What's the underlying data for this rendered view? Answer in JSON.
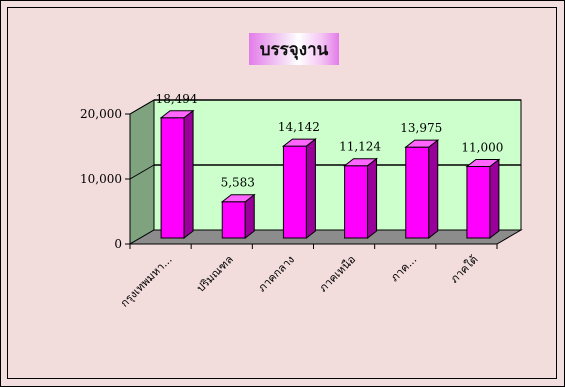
{
  "chart_data": {
    "type": "bar",
    "title": "บรรจุงาน",
    "categories": [
      "กรุงเทพมหา...",
      "ปริมณฑล",
      "ภาคกลาง",
      "ภาคเหนือ",
      "ภาค...",
      "ภาคใต้"
    ],
    "values": [
      18494,
      5583,
      14142,
      11124,
      13975,
      11000
    ],
    "data_labels": [
      "18,494",
      "5,583",
      "14,142",
      "11,124",
      "13,975",
      "11,000"
    ],
    "y_ticks": [
      "0",
      "10,000",
      "20,000"
    ],
    "ylim": [
      0,
      20000
    ],
    "grid": true,
    "legend": "none",
    "colors": {
      "bar_front": "#ff00ff",
      "bar_side": "#990099",
      "bar_top": "#ff66ff",
      "back_wall": "#ccffcc",
      "side_wall": "#7fa37f",
      "floor": "#8c8c8c",
      "background": "#f2dcdc"
    }
  }
}
